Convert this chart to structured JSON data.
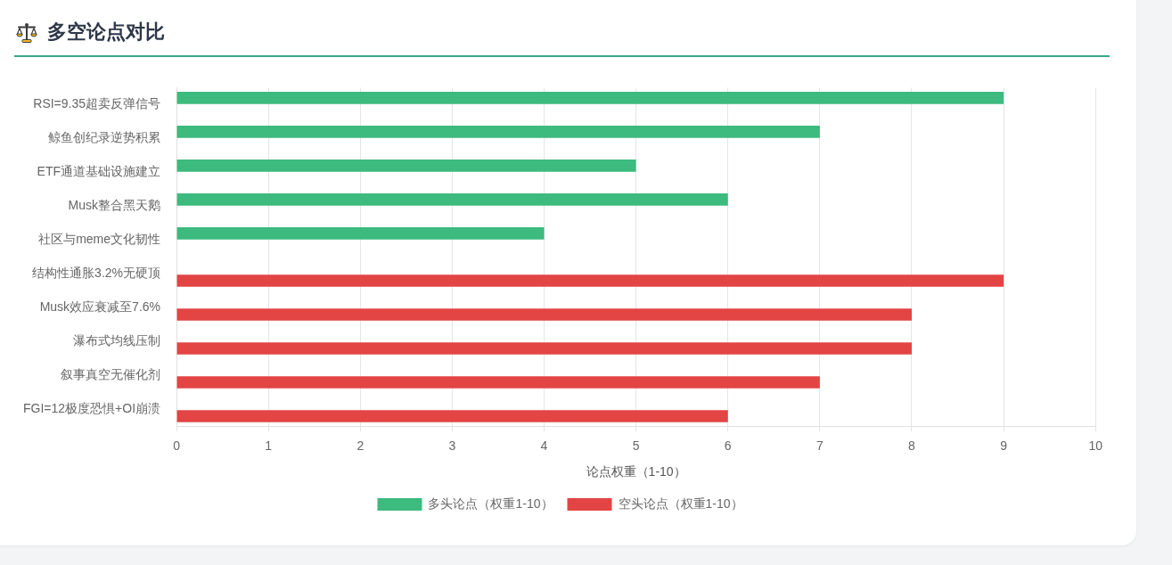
{
  "chart_data": {
    "type": "bar",
    "orientation": "horizontal",
    "title": "多空论点对比",
    "xlabel": "论点权重（1-10）",
    "categories": [
      "RSI=9.35超卖反弹信号",
      "鲸鱼创纪录逆势积累",
      "ETF通道基础设施建立",
      "Musk整合黑天鹅",
      "社区与meme文化韧性",
      "结构性通胀3.2%无硬顶",
      "Musk效应衰减至7.6%",
      "瀑布式均线压制",
      "叙事真空无催化剂",
      "FGI=12极度恐惧+OI崩溃"
    ],
    "series": [
      {
        "name": "多头论点（权重1-10）",
        "color": "#3dba7e",
        "values": [
          9,
          7,
          5,
          6,
          4,
          null,
          null,
          null,
          null,
          null
        ]
      },
      {
        "name": "空头论点（权重1-10）",
        "color": "#e34444",
        "values": [
          null,
          null,
          null,
          null,
          null,
          9,
          8,
          8,
          7,
          6
        ]
      }
    ],
    "xlim": [
      0,
      10
    ],
    "xticks": [
      0,
      1,
      2,
      3,
      4,
      5,
      6,
      7,
      8,
      9,
      10
    ],
    "grid": "x",
    "legend": "bottom"
  }
}
